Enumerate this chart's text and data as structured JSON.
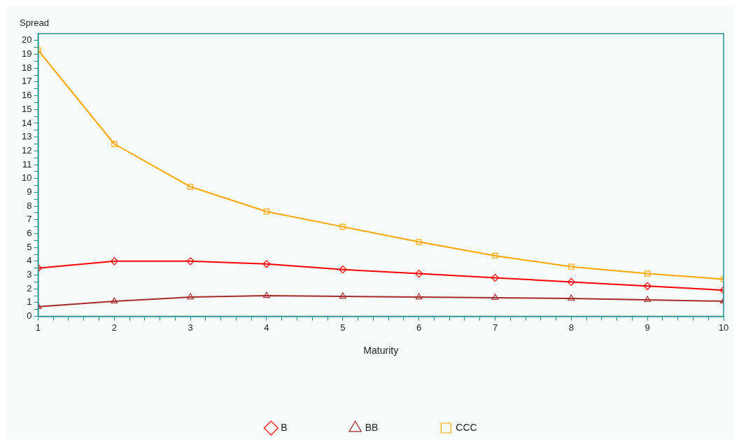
{
  "chart_data": {
    "type": "line",
    "xlabel": "Maturity",
    "ylabel": "Spread",
    "x": [
      1,
      2,
      3,
      4,
      5,
      6,
      7,
      8,
      9,
      10
    ],
    "series": [
      {
        "name": "B",
        "color": "#ff0000",
        "marker": "diamond",
        "values": [
          3.5,
          4.0,
          4.0,
          3.8,
          3.4,
          3.1,
          2.8,
          2.5,
          2.2,
          1.9
        ]
      },
      {
        "name": "BB",
        "color": "#a52a2a",
        "marker": "triangle",
        "values": [
          0.7,
          1.1,
          1.4,
          1.5,
          1.45,
          1.4,
          1.35,
          1.3,
          1.2,
          1.1
        ]
      },
      {
        "name": "CCC",
        "color": "#ffa500",
        "marker": "square",
        "values": [
          19.3,
          12.5,
          9.4,
          7.6,
          6.5,
          5.4,
          4.4,
          3.6,
          3.1,
          2.7
        ]
      }
    ],
    "xlim": [
      1,
      10
    ],
    "ylim": [
      0,
      20.5
    ],
    "xticks": [
      1,
      {
        "value": 1.2,
        "label": null
      },
      {
        "value": 1.4,
        "label": null
      },
      {
        "value": 1.6,
        "label": null
      },
      {
        "value": 1.8,
        "label": null
      },
      2,
      {
        "value": 2.2,
        "label": null
      },
      {
        "value": 2.4,
        "label": null
      },
      {
        "value": 2.6,
        "label": null
      },
      {
        "value": 2.8,
        "label": null
      },
      3,
      {
        "value": 3.2,
        "label": null
      },
      {
        "value": 3.4,
        "label": null
      },
      {
        "value": 3.6,
        "label": null
      },
      {
        "value": 3.8,
        "label": null
      },
      4,
      {
        "value": 4.2,
        "label": null
      },
      {
        "value": 4.4,
        "label": null
      },
      {
        "value": 4.6,
        "label": null
      },
      {
        "value": 4.8,
        "label": null
      },
      5,
      {
        "value": 5.2,
        "label": null
      },
      {
        "value": 5.4,
        "label": null
      },
      {
        "value": 5.6,
        "label": null
      },
      {
        "value": 5.8,
        "label": null
      },
      6,
      {
        "value": 6.2,
        "label": null
      },
      {
        "value": 6.4,
        "label": null
      },
      {
        "value": 6.6,
        "label": null
      },
      {
        "value": 6.8,
        "label": null
      },
      7,
      {
        "value": 7.2,
        "label": null
      },
      {
        "value": 7.4,
        "label": null
      },
      {
        "value": 7.6,
        "label": null
      },
      {
        "value": 7.8,
        "label": null
      },
      8,
      {
        "value": 8.2,
        "label": null
      },
      {
        "value": 8.4,
        "label": null
      },
      {
        "value": 8.6,
        "label": null
      },
      {
        "value": 8.8,
        "label": null
      },
      9,
      {
        "value": 9.2,
        "label": null
      },
      {
        "value": 9.4,
        "label": null
      },
      {
        "value": 9.6,
        "label": null
      },
      {
        "value": 9.8,
        "label": null
      },
      10
    ],
    "yticks": [
      0,
      {
        "value": 0.5,
        "label": null
      },
      1,
      {
        "value": 1.5,
        "label": null
      },
      2,
      {
        "value": 2.5,
        "label": null
      },
      3,
      {
        "value": 3.5,
        "label": null
      },
      4,
      {
        "value": 4.5,
        "label": null
      },
      5,
      {
        "value": 5.5,
        "label": null
      },
      6,
      {
        "value": 6.5,
        "label": null
      },
      7,
      {
        "value": 7.5,
        "label": null
      },
      8,
      {
        "value": 8.5,
        "label": null
      },
      9,
      {
        "value": 9.5,
        "label": null
      },
      10,
      {
        "value": 10.5,
        "label": null
      },
      11,
      {
        "value": 11.5,
        "label": null
      },
      12,
      {
        "value": 12.5,
        "label": null
      },
      13,
      {
        "value": 13.5,
        "label": null
      },
      14,
      {
        "value": 14.5,
        "label": null
      },
      15,
      {
        "value": 15.5,
        "label": null
      },
      16,
      {
        "value": 16.5,
        "label": null
      },
      17,
      {
        "value": 17.5,
        "label": null
      },
      18,
      {
        "value": 18.5,
        "label": null
      },
      19,
      {
        "value": 19.5,
        "label": null
      },
      20
    ],
    "grid": false,
    "legend": "bottom",
    "line_style": "solid"
  }
}
